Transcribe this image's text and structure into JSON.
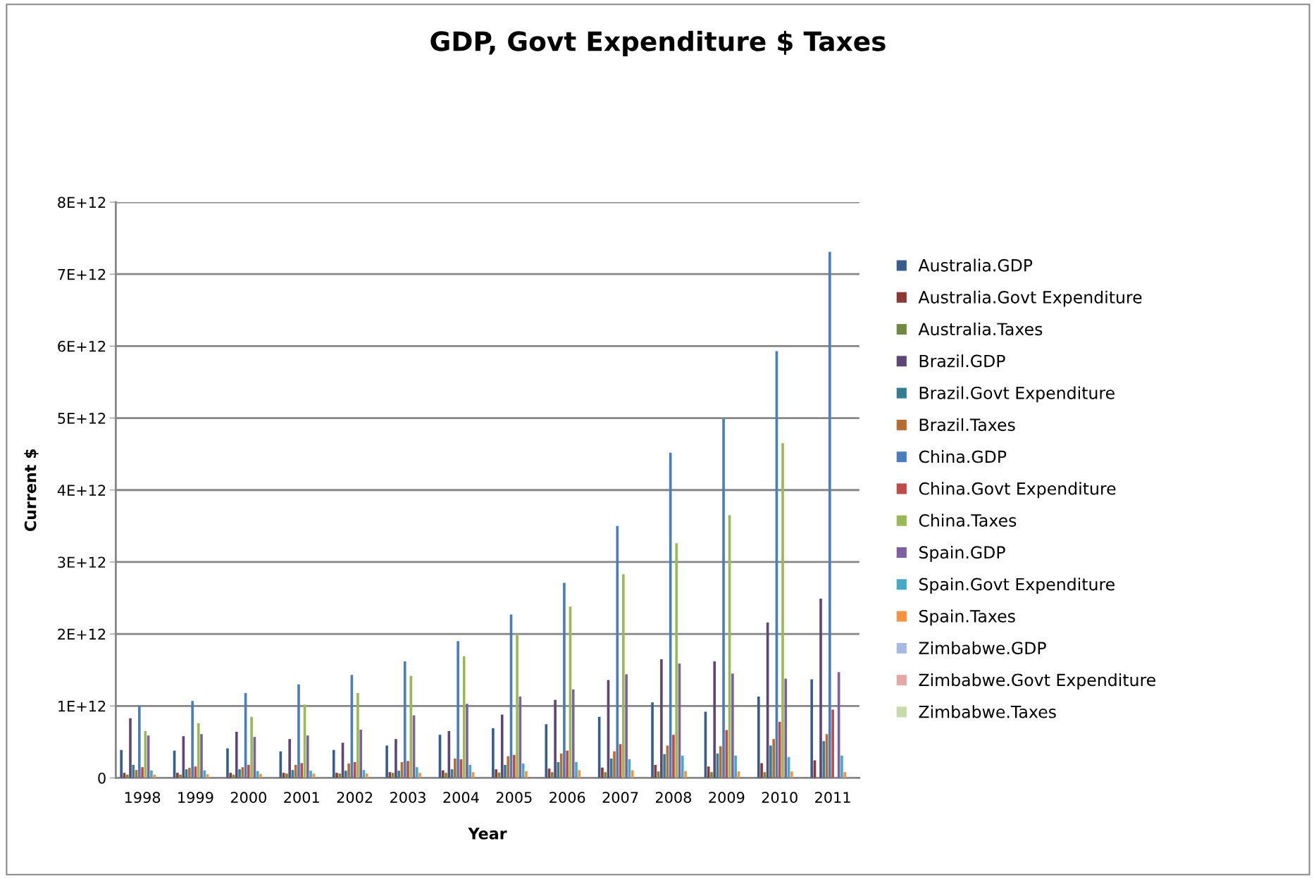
{
  "chart_data": {
    "type": "bar",
    "title": "GDP, Govt Expenditure $ Taxes",
    "xlabel": "Year",
    "ylabel": "Current $",
    "categories": [
      "1998",
      "1999",
      "2000",
      "2001",
      "2002",
      "2003",
      "2004",
      "2005",
      "2006",
      "2007",
      "2008",
      "2009",
      "2010",
      "2011"
    ],
    "ylim": [
      0,
      8000000000000
    ],
    "yticks": [
      {
        "value": 0,
        "label": "0"
      },
      {
        "value": 1000000000000,
        "label": "1E+12"
      },
      {
        "value": 2000000000000,
        "label": "2E+12"
      },
      {
        "value": 3000000000000,
        "label": "3E+12"
      },
      {
        "value": 4000000000000,
        "label": "4E+12"
      },
      {
        "value": 5000000000000,
        "label": "5E+12"
      },
      {
        "value": 6000000000000,
        "label": "6E+12"
      },
      {
        "value": 7000000000000,
        "label": "7E+12"
      },
      {
        "value": 8000000000000,
        "label": "8E+12"
      }
    ],
    "grid": "y",
    "legend": "right",
    "series": [
      {
        "name": "Australia.GDP",
        "color": "#385d8a",
        "values": [
          390000000000,
          380000000000,
          410000000000,
          370000000000,
          390000000000,
          450000000000,
          600000000000,
          690000000000,
          745000000000,
          850000000000,
          1050000000000,
          920000000000,
          1130000000000,
          1370000000000
        ]
      },
      {
        "name": "Australia.Govt Expenditure",
        "color": "#8c3836",
        "values": [
          70000000000,
          70000000000,
          70000000000,
          70000000000,
          70000000000,
          80000000000,
          105000000000,
          120000000000,
          130000000000,
          145000000000,
          180000000000,
          160000000000,
          205000000000,
          245000000000
        ]
      },
      {
        "name": "Australia.Taxes",
        "color": "#71893f",
        "values": [
          46000000000,
          46000000000,
          46000000000,
          60000000000,
          60000000000,
          70000000000,
          70000000000,
          75000000000,
          80000000000,
          80000000000,
          90000000000,
          80000000000,
          80000000000,
          null
        ]
      },
      {
        "name": "Brazil.GDP",
        "color": "#5c4776",
        "values": [
          830000000000,
          580000000000,
          640000000000,
          540000000000,
          490000000000,
          540000000000,
          650000000000,
          880000000000,
          1085000000000,
          1360000000000,
          1650000000000,
          1620000000000,
          2160000000000,
          2490000000000
        ]
      },
      {
        "name": "Brazil.Govt Expenditure",
        "color": "#357d91",
        "values": [
          180000000000,
          120000000000,
          120000000000,
          110000000000,
          100000000000,
          100000000000,
          120000000000,
          180000000000,
          220000000000,
          270000000000,
          330000000000,
          340000000000,
          450000000000,
          510000000000
        ]
      },
      {
        "name": "Brazil.Taxes",
        "color": "#b66d31",
        "values": [
          110000000000,
          140000000000,
          150000000000,
          180000000000,
          200000000000,
          220000000000,
          270000000000,
          300000000000,
          340000000000,
          370000000000,
          450000000000,
          440000000000,
          540000000000,
          610000000000
        ]
      },
      {
        "name": "China.GDP",
        "color": "#4a7ebb",
        "values": [
          1000000000000,
          1070000000000,
          1180000000000,
          1300000000000,
          1430000000000,
          1620000000000,
          1900000000000,
          2270000000000,
          2710000000000,
          3500000000000,
          4520000000000,
          4990000000000,
          5930000000000,
          7310000000000
        ]
      },
      {
        "name": "China.Govt Expenditure",
        "color": "#be4b48",
        "values": [
          150000000000,
          160000000000,
          180000000000,
          205000000000,
          220000000000,
          235000000000,
          260000000000,
          320000000000,
          380000000000,
          470000000000,
          600000000000,
          665000000000,
          780000000000,
          950000000000
        ]
      },
      {
        "name": "China.Taxes",
        "color": "#98b954",
        "values": [
          650000000000,
          760000000000,
          850000000000,
          1020000000000,
          1180000000000,
          1420000000000,
          1690000000000,
          2000000000000,
          2380000000000,
          2830000000000,
          3260000000000,
          3650000000000,
          4650000000000,
          null
        ]
      },
      {
        "name": "Spain.GDP",
        "color": "#7d60a0",
        "values": [
          590000000000,
          610000000000,
          570000000000,
          590000000000,
          670000000000,
          870000000000,
          1030000000000,
          1130000000000,
          1230000000000,
          1440000000000,
          1590000000000,
          1450000000000,
          1380000000000,
          1470000000000
        ]
      },
      {
        "name": "Spain.Govt Expenditure",
        "color": "#46aac5",
        "values": [
          105000000000,
          105000000000,
          95000000000,
          100000000000,
          110000000000,
          150000000000,
          180000000000,
          200000000000,
          220000000000,
          260000000000,
          310000000000,
          310000000000,
          290000000000,
          310000000000
        ]
      },
      {
        "name": "Spain.Taxes",
        "color": "#f69240",
        "values": [
          46000000000,
          50000000000,
          57000000000,
          60000000000,
          60000000000,
          70000000000,
          80000000000,
          96000000000,
          107000000000,
          107000000000,
          96000000000,
          90000000000,
          90000000000,
          80000000000
        ]
      },
      {
        "name": "Zimbabwe.GDP",
        "color": "#a7b9e3",
        "values": [
          0,
          0,
          0,
          0,
          0,
          0,
          0,
          0,
          0,
          0,
          0,
          0,
          0,
          0
        ]
      },
      {
        "name": "Zimbabwe.Govt Expenditure",
        "color": "#e3a9a9",
        "values": [
          0,
          0,
          0,
          0,
          0,
          0,
          0,
          0,
          0,
          0,
          0,
          0,
          0,
          0
        ]
      },
      {
        "name": "Zimbabwe.Taxes",
        "color": "#c8d9ab",
        "values": [
          0,
          0,
          0,
          0,
          0,
          0,
          0,
          0,
          0,
          0,
          0,
          0,
          0,
          0
        ]
      }
    ]
  }
}
